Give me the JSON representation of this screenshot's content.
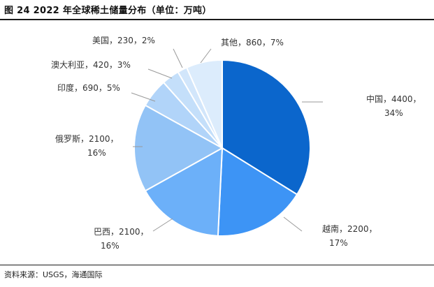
{
  "header": {
    "title": "图 24 2022 年全球稀土储量分布（单位：万吨）"
  },
  "footer": {
    "source": "资料来源：USGS，海通国际"
  },
  "chart_data": {
    "type": "pie",
    "title": "图 24 2022 年全球稀土储量分布（单位：万吨）",
    "unit": "万吨",
    "slices": [
      {
        "name": "中国",
        "value": 4400,
        "percent": "34%",
        "color": "#0b66cc",
        "label_line1": "中国，4400，",
        "label_line2": "34%"
      },
      {
        "name": "越南",
        "value": 2200,
        "percent": "17%",
        "color": "#3d94f5",
        "label_line1": "越南，2200，",
        "label_line2": "17%"
      },
      {
        "name": "巴西",
        "value": 2100,
        "percent": "16%",
        "color": "#6cb0f9",
        "label_line1": "巴西，2100，",
        "label_line2": "16%"
      },
      {
        "name": "俄罗斯",
        "value": 2100,
        "percent": "16%",
        "color": "#92c3f6",
        "label_line1": "俄罗斯，2100，",
        "label_line2": "16%"
      },
      {
        "name": "印度",
        "value": 690,
        "percent": "5%",
        "color": "#b1d4f9",
        "label_line1": "印度，690，5%",
        "label_line2": ""
      },
      {
        "name": "澳大利亚",
        "value": 420,
        "percent": "3%",
        "color": "#c4dffa",
        "label_line1": "澳大利亚，420，3%",
        "label_line2": ""
      },
      {
        "name": "美国",
        "value": 230,
        "percent": "2%",
        "color": "#d2e6fb",
        "label_line1": "美国，230，2%",
        "label_line2": ""
      },
      {
        "name": "其他",
        "value": 860,
        "percent": "7%",
        "color": "#dcecfc",
        "label_line1": "其他，860，7%",
        "label_line2": ""
      }
    ]
  }
}
